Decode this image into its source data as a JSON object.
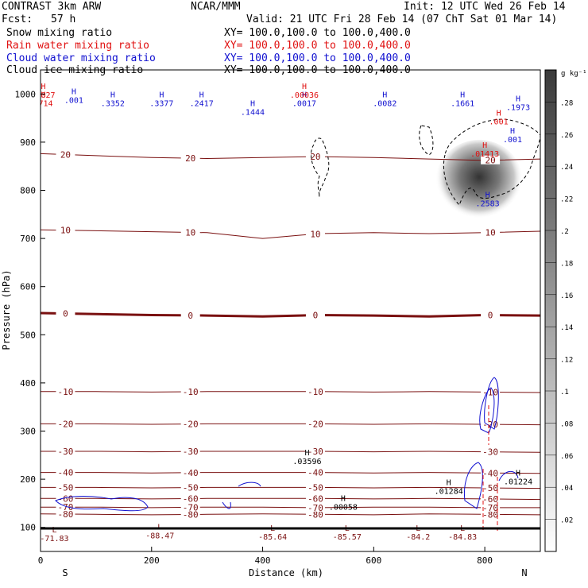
{
  "header": {
    "model": "CONTRAST  3km ARW",
    "org": "NCAR/MMM",
    "init": "Init: 12 UTC Wed 26 Feb 14",
    "fcst_label": "Fcst:",
    "fcst_value": "57 h",
    "valid": "Valid: 21 UTC Fri 28 Feb 14 (07 ChT Sat 01 Mar 14)",
    "lines": [
      {
        "name": "Snow mixing ratio",
        "xy": "XY= 100.0,100.0 to 100.0,400.0",
        "color": "#000000"
      },
      {
        "name": "Rain water mixing ratio",
        "xy": "XY= 100.0,100.0 to 100.0,400.0",
        "color": "#e01010"
      },
      {
        "name": "Cloud water mixing ratio",
        "xy": "XY= 100.0,100.0 to 100.0,400.0",
        "color": "#1010d0"
      },
      {
        "name": "Cloud ice mixing ratio",
        "xy": "XY= 100.0,100.0 to 100.0,400.0",
        "color": "#000000"
      }
    ]
  },
  "chart_data": {
    "type": "contour-cross-section",
    "xlabel": "Distance (km)",
    "ylabel": "Pressure (hPa)",
    "xlim": [
      0,
      900
    ],
    "ylim": [
      1050,
      50
    ],
    "x_ticks": [
      0,
      200,
      400,
      600,
      800
    ],
    "y_ticks": [
      100,
      200,
      300,
      400,
      500,
      600,
      700,
      800,
      900,
      1000
    ],
    "x_end_labels": {
      "left": "S",
      "right": "N"
    },
    "colorbar": {
      "units": "g kg⁻¹",
      "ticks": [
        ".02",
        ".04",
        ".06",
        ".08",
        ".1",
        ".12",
        ".14",
        ".16",
        ".18",
        ".2",
        ".22",
        ".24",
        ".26",
        ".28"
      ]
    },
    "temperature_contours": [
      {
        "label": "-80",
        "p": [
          128,
          127,
          126,
          127,
          128,
          127,
          126,
          128,
          127,
          126
        ]
      },
      {
        "label": "-70",
        "p": [
          142,
          142,
          141,
          142,
          142,
          141,
          142,
          142,
          141,
          141
        ]
      },
      {
        "label": "-60",
        "p": [
          160,
          160,
          159,
          160,
          160,
          160,
          159,
          160,
          159,
          158
        ]
      },
      {
        "label": "-50",
        "p": [
          183,
          183,
          182,
          183,
          183,
          183,
          182,
          183,
          182,
          181
        ]
      },
      {
        "label": "-40",
        "p": [
          214,
          214,
          213,
          214,
          214,
          214,
          213,
          214,
          213,
          212
        ]
      },
      {
        "label": "-30",
        "p": [
          258,
          258,
          257,
          258,
          258,
          258,
          257,
          258,
          257,
          256
        ]
      },
      {
        "label": "-20",
        "p": [
          315,
          315,
          314,
          315,
          315,
          315,
          314,
          315,
          314,
          313
        ]
      },
      {
        "label": "-10",
        "p": [
          382,
          382,
          381,
          382,
          382,
          382,
          381,
          382,
          381,
          380
        ]
      },
      {
        "label": "0",
        "p": [
          545,
          543,
          541,
          540,
          538,
          541,
          540,
          538,
          541,
          540
        ]
      },
      {
        "label": "10",
        "p": [
          718,
          716,
          714,
          712,
          700,
          710,
          712,
          710,
          712,
          715
        ]
      },
      {
        "label": "20",
        "p": [
          876,
          872,
          868,
          866,
          868,
          870,
          868,
          865,
          862,
          865
        ]
      }
    ],
    "extremes": [
      {
        "kind": "L",
        "value": "-88.47",
        "x": 215,
        "p": 95
      },
      {
        "kind": "L",
        "value": "-85.64",
        "x": 418,
        "p": 93
      },
      {
        "kind": "L",
        "value": "-85.57",
        "x": 552,
        "p": 93
      },
      {
        "kind": "L",
        "value": "-84.2",
        "x": 680,
        "p": 93
      },
      {
        "kind": "L",
        "value": "-84.83",
        "x": 760,
        "p": 93
      },
      {
        "kind": "L",
        "value": "-71.83",
        "x": 25,
        "p": 90
      },
      {
        "kind": "H",
        "value": ".00058",
        "x": 545,
        "p": 155,
        "series": "snow"
      },
      {
        "kind": "H",
        "value": ".01284",
        "x": 735,
        "p": 188,
        "series": "snow"
      },
      {
        "kind": "H",
        "value": ".01224",
        "x": 860,
        "p": 208,
        "series": "snow"
      },
      {
        "kind": "H",
        "value": ".03596",
        "x": 480,
        "p": 250,
        "series": "snow"
      },
      {
        "kind": "H",
        "value": ".2583",
        "x": 805,
        "p": 785,
        "series": "cloud"
      },
      {
        "kind": "H",
        "value": ".01413",
        "x": 800,
        "p": 888,
        "series": "rain"
      },
      {
        "kind": "H",
        "value": ".001",
        "x": 850,
        "p": 918,
        "series": "cloud"
      },
      {
        "kind": "H",
        "value": ".001",
        "x": 825,
        "p": 955,
        "series": "rain"
      },
      {
        "kind": "H",
        "value": ".1973",
        "x": 860,
        "p": 985,
        "series": "cloud"
      },
      {
        "kind": "H",
        "value": ".1661",
        "x": 760,
        "p": 993,
        "series": "cloud"
      },
      {
        "kind": "H",
        "value": ".0082",
        "x": 620,
        "p": 993,
        "series": "cloud"
      },
      {
        "kind": "H",
        "value": ".0017",
        "x": 475,
        "p": 993,
        "series": "cloud"
      },
      {
        "kind": "H",
        "value": ".00036",
        "x": 475,
        "p": 1010,
        "series": "rain"
      },
      {
        "kind": "H",
        "value": ".1444",
        "x": 382,
        "p": 975,
        "series": "cloud"
      },
      {
        "kind": "H",
        "value": ".2417",
        "x": 290,
        "p": 993,
        "series": "cloud"
      },
      {
        "kind": "H",
        "value": ".3377",
        "x": 218,
        "p": 993,
        "series": "cloud"
      },
      {
        "kind": "H",
        "value": ".3352",
        "x": 130,
        "p": 993,
        "series": "cloud"
      },
      {
        "kind": "H",
        "value": ".001",
        "x": 60,
        "p": 1000,
        "series": "cloud"
      },
      {
        "kind": "H",
        "value": ".714",
        "x": 5,
        "p": 993,
        "series": "rain"
      },
      {
        "kind": "H",
        "value": ".0027",
        "x": 5,
        "p": 1010,
        "series": "rain"
      }
    ]
  }
}
